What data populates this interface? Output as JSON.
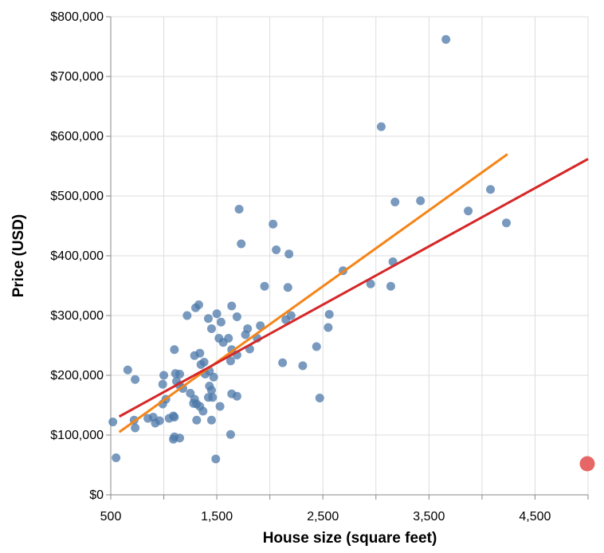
{
  "chart_data": {
    "type": "scatter",
    "xlabel": "House size (square feet)",
    "ylabel": "Price (USD)",
    "xlim": [
      500,
      5000
    ],
    "ylim": [
      0,
      800000
    ],
    "x_ticks": [
      500,
      1500,
      2500,
      3500,
      4500
    ],
    "x_tick_labels": [
      "500",
      "1,500",
      "2,500",
      "3,500",
      "4,500"
    ],
    "y_ticks": [
      0,
      100000,
      200000,
      300000,
      400000,
      500000,
      600000,
      700000,
      800000
    ],
    "y_tick_labels": [
      "$0",
      "$100,000",
      "$200,000",
      "$300,000",
      "$400,000",
      "$500,000",
      "$600,000",
      "$700,000",
      "$800,000"
    ],
    "grid": true,
    "colors": {
      "points": "#4c78a8",
      "outlier": "#e45756",
      "fit_orange": "#f58518",
      "fit_red": "#d62728",
      "grid": "#dddddd",
      "axis": "#888888"
    },
    "points": [
      [
        1710,
        478000
      ],
      [
        1730,
        420000
      ],
      [
        2030,
        453000
      ],
      [
        2060,
        410000
      ],
      [
        2180,
        403000
      ],
      [
        1950,
        349000
      ],
      [
        2170,
        347000
      ],
      [
        1640,
        316000
      ],
      [
        1330,
        318000
      ],
      [
        1300,
        313000
      ],
      [
        1220,
        300000
      ],
      [
        1420,
        295000
      ],
      [
        1500,
        303000
      ],
      [
        1540,
        289000
      ],
      [
        1690,
        298000
      ],
      [
        1450,
        278000
      ],
      [
        1790,
        278000
      ],
      [
        1910,
        283000
      ],
      [
        1770,
        268000
      ],
      [
        1880,
        262000
      ],
      [
        1520,
        262000
      ],
      [
        1560,
        255000
      ],
      [
        1610,
        262000
      ],
      [
        1100,
        243000
      ],
      [
        1340,
        237000
      ],
      [
        1290,
        233000
      ],
      [
        1380,
        222000
      ],
      [
        1350,
        218000
      ],
      [
        1630,
        224000
      ],
      [
        1690,
        234000
      ],
      [
        1640,
        243000
      ],
      [
        1810,
        244000
      ],
      [
        1430,
        207000
      ],
      [
        1390,
        202000
      ],
      [
        1470,
        197000
      ],
      [
        660,
        209000
      ],
      [
        730,
        193000
      ],
      [
        1000,
        200000
      ],
      [
        1110,
        203000
      ],
      [
        1150,
        202000
      ],
      [
        1120,
        190000
      ],
      [
        1150,
        183000
      ],
      [
        1180,
        178000
      ],
      [
        990,
        185000
      ],
      [
        1250,
        170000
      ],
      [
        1430,
        182000
      ],
      [
        1450,
        175000
      ],
      [
        1460,
        163000
      ],
      [
        1420,
        163000
      ],
      [
        1640,
        169000
      ],
      [
        1690,
        165000
      ],
      [
        1290,
        160000
      ],
      [
        1280,
        153000
      ],
      [
        1310,
        152000
      ],
      [
        1340,
        148000
      ],
      [
        1370,
        140000
      ],
      [
        1530,
        148000
      ],
      [
        1020,
        160000
      ],
      [
        990,
        152000
      ],
      [
        1310,
        125000
      ],
      [
        1450,
        125000
      ],
      [
        1090,
        132000
      ],
      [
        1100,
        130000
      ],
      [
        1050,
        128000
      ],
      [
        850,
        128000
      ],
      [
        900,
        130000
      ],
      [
        920,
        120000
      ],
      [
        960,
        124000
      ],
      [
        720,
        125000
      ],
      [
        730,
        112000
      ],
      [
        520,
        122000
      ],
      [
        1100,
        97000
      ],
      [
        1090,
        93000
      ],
      [
        1150,
        95000
      ],
      [
        1630,
        101000
      ],
      [
        550,
        62000
      ],
      [
        1490,
        60000
      ],
      [
        2120,
        221000
      ],
      [
        2310,
        216000
      ],
      [
        2440,
        248000
      ],
      [
        2470,
        162000
      ],
      [
        2550,
        280000
      ],
      [
        2560,
        302000
      ],
      [
        2200,
        300000
      ],
      [
        2150,
        293000
      ],
      [
        2690,
        375000
      ],
      [
        2950,
        353000
      ],
      [
        3140,
        349000
      ],
      [
        3160,
        390000
      ],
      [
        3180,
        490000
      ],
      [
        3420,
        492000
      ],
      [
        3050,
        616000
      ],
      [
        3660,
        762000
      ],
      [
        3870,
        475000
      ],
      [
        4080,
        511000
      ],
      [
        4230,
        455000
      ]
    ],
    "outlier": [
      5000,
      52000
    ],
    "fit_lines": [
      {
        "color": "#f58518",
        "x": [
          580,
          4240
        ],
        "y": [
          105000,
          570000
        ]
      },
      {
        "color": "#d62728",
        "x": [
          580,
          5000
        ],
        "y": [
          131000,
          562000
        ]
      }
    ]
  }
}
